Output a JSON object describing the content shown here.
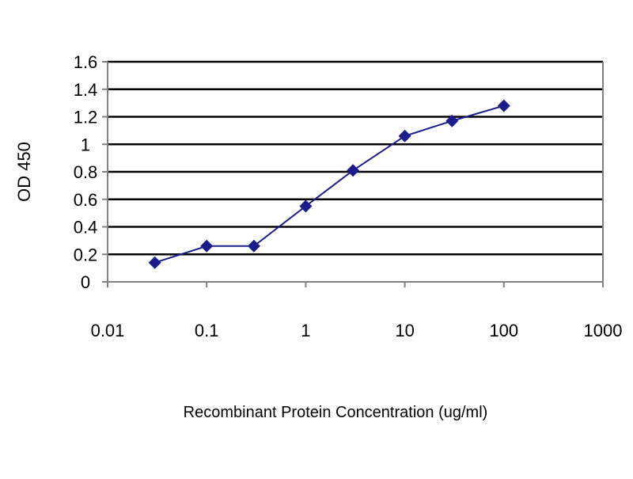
{
  "chart_data": {
    "type": "line",
    "title": "",
    "xlabel": "Recombinant Protein Concentration (ug/ml)",
    "ylabel": "OD 450",
    "x_scale": "log",
    "xlim": [
      0.01,
      1000
    ],
    "ylim": [
      0,
      1.6
    ],
    "x_ticks": [
      "0.01",
      "0.1",
      "1",
      "10",
      "100",
      "1000"
    ],
    "y_ticks": [
      "0",
      "0.2",
      "0.4",
      "0.6",
      "0.8",
      "1",
      "1.2",
      "1.4",
      "1.6"
    ],
    "grid": "horizontal",
    "legend": "none",
    "series": [
      {
        "x": [
          0.03,
          0.1,
          0.3,
          1,
          3,
          10,
          30,
          100
        ],
        "y": [
          0.14,
          0.26,
          0.26,
          0.55,
          0.81,
          1.06,
          1.17,
          1.28
        ]
      }
    ],
    "colors": {
      "line": "#1c1c8c",
      "marker": "#1c1c8c",
      "gridline": "#000000",
      "plot_frame": "#808080"
    }
  }
}
